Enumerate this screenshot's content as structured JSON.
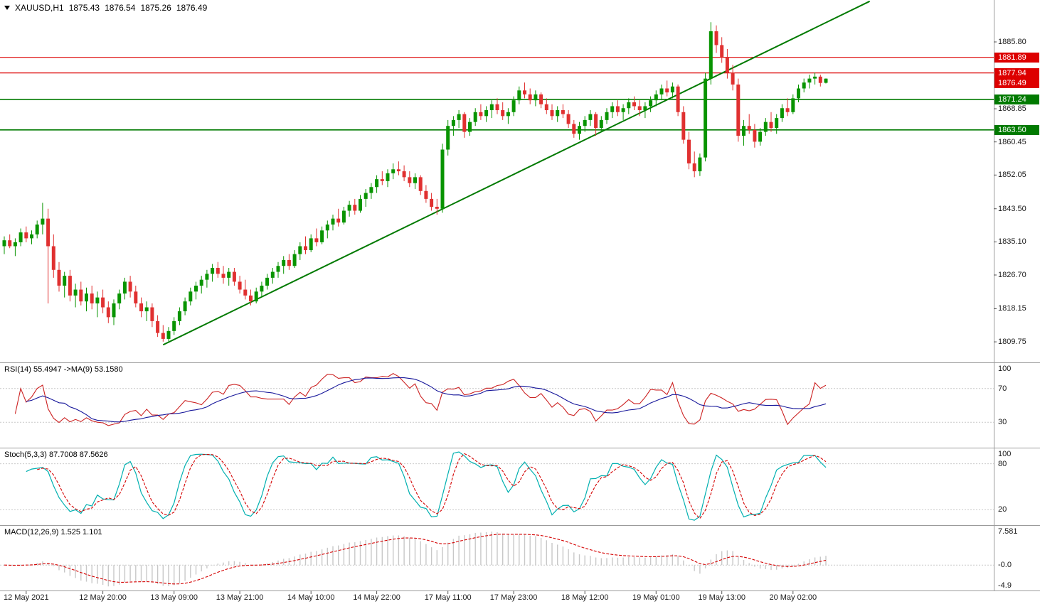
{
  "header": {
    "symbol": "XAUUSD,H1",
    "open": "1875.43",
    "high": "1876.54",
    "low": "1875.26",
    "close": "1876.49"
  },
  "panels": {
    "rsi_label": "RSI(14) 55.4947 ->MA(9) 53.1580",
    "stoch_label": "Stoch(5,3,3) 87.7008 87.5626",
    "macd_label": "MACD(12,26,9) 1.525 1.101"
  },
  "chart_data": {
    "type": "candlestick",
    "symbol": "XAUUSD",
    "timeframe": "H1",
    "last_ohlc": {
      "open": 1875.43,
      "high": 1876.54,
      "low": 1875.26,
      "close": 1876.49
    },
    "price_axis_ticks": [
      "1885.80",
      "1868.85",
      "1860.45",
      "1852.05",
      "1843.50",
      "1835.10",
      "1826.70",
      "1818.15",
      "1809.75"
    ],
    "price_levels": [
      {
        "label": "1881.89",
        "price": 1881.89,
        "color": "#dd0000",
        "role": "resistance"
      },
      {
        "label": "1877.94",
        "price": 1877.94,
        "color": "#dd0000",
        "role": "resistance"
      },
      {
        "label": "1871.24",
        "price": 1871.24,
        "color": "#007a00",
        "role": "support"
      },
      {
        "label": "1863.50",
        "price": 1863.5,
        "color": "#007a00",
        "role": "support"
      }
    ],
    "current_price": {
      "label": "1876.49",
      "price": 1876.49,
      "color": "#dd0000"
    },
    "trendline": {
      "from_index": 29,
      "from_price": 1809.0,
      "to_index": 158,
      "to_price": 1896.1,
      "color": "#007a00"
    },
    "candle_colors": {
      "up": "#089400",
      "down": "#e03030"
    },
    "time_labels": [
      {
        "text": "12 May 2021",
        "index": 4
      },
      {
        "text": "12 May 20:00",
        "index": 18
      },
      {
        "text": "13 May 09:00",
        "index": 31
      },
      {
        "text": "13 May 21:00",
        "index": 43
      },
      {
        "text": "14 May 10:00",
        "index": 56
      },
      {
        "text": "14 May 22:00",
        "index": 68
      },
      {
        "text": "17 May 11:00",
        "index": 81
      },
      {
        "text": "17 May 23:00",
        "index": 93
      },
      {
        "text": "18 May 12:00",
        "index": 106
      },
      {
        "text": "19 May 01:00",
        "index": 119
      },
      {
        "text": "19 May 13:00",
        "index": 131
      },
      {
        "text": "20 May 02:00",
        "index": 144
      }
    ],
    "indicators": {
      "rsi": {
        "name": "RSI",
        "period": 14,
        "ma_period": 9,
        "value": 55.4947,
        "ma_value": 53.158,
        "axis": [
          "100",
          "70",
          "30"
        ],
        "levels": [
          70,
          30
        ],
        "color": "#cc2222",
        "ma_color": "#16169a"
      },
      "stoch": {
        "name": "Stochastic",
        "params": [
          5,
          3,
          3
        ],
        "k_value": 87.7008,
        "d_value": 87.5626,
        "axis": [
          "100",
          "80",
          "20"
        ],
        "levels": [
          80,
          20
        ],
        "k_color": "#00b0b0",
        "d_color": "#d40000"
      },
      "macd": {
        "name": "MACD",
        "params": [
          12,
          26,
          9
        ],
        "value": 1.525,
        "signal_value": 1.101,
        "axis": [
          "7.581",
          "-0.0",
          "-4.9"
        ],
        "hist_color": "#c8c8c8",
        "signal_color": "#d40000"
      }
    },
    "candles": [
      [
        1834.0,
        1836.5,
        1832.0,
        1835.5
      ],
      [
        1835.5,
        1837.0,
        1833.5,
        1834.0
      ],
      [
        1834.0,
        1836.0,
        1831.5,
        1835.0
      ],
      [
        1835.0,
        1838.5,
        1834.0,
        1837.5
      ],
      [
        1837.5,
        1839.0,
        1835.0,
        1836.0
      ],
      [
        1836.0,
        1838.0,
        1834.5,
        1837.0
      ],
      [
        1837.0,
        1840.5,
        1836.0,
        1839.5
      ],
      [
        1839.5,
        1845.0,
        1837.0,
        1841.0
      ],
      [
        1841.0,
        1843.5,
        1819.5,
        1834.0
      ],
      [
        1834.0,
        1837.0,
        1826.0,
        1828.0
      ],
      [
        1828.0,
        1830.0,
        1822.5,
        1824.0
      ],
      [
        1824.0,
        1827.5,
        1821.0,
        1826.5
      ],
      [
        1826.5,
        1828.0,
        1820.0,
        1821.5
      ],
      [
        1821.5,
        1824.5,
        1818.5,
        1823.0
      ],
      [
        1823.0,
        1825.0,
        1819.0,
        1820.0
      ],
      [
        1820.0,
        1823.5,
        1817.5,
        1822.0
      ],
      [
        1822.0,
        1824.0,
        1818.0,
        1819.5
      ],
      [
        1819.5,
        1822.5,
        1816.0,
        1821.0
      ],
      [
        1821.0,
        1823.0,
        1817.0,
        1818.5
      ],
      [
        1818.5,
        1820.0,
        1814.5,
        1816.0
      ],
      [
        1816.0,
        1820.5,
        1814.0,
        1819.5
      ],
      [
        1819.5,
        1823.0,
        1818.0,
        1822.0
      ],
      [
        1822.0,
        1826.0,
        1820.5,
        1825.0
      ],
      [
        1825.0,
        1826.5,
        1821.0,
        1822.5
      ],
      [
        1822.5,
        1824.0,
        1818.5,
        1819.5
      ],
      [
        1819.5,
        1821.0,
        1816.0,
        1817.5
      ],
      [
        1817.5,
        1820.0,
        1815.0,
        1818.5
      ],
      [
        1818.5,
        1819.5,
        1813.5,
        1815.0
      ],
      [
        1815.0,
        1816.5,
        1811.0,
        1812.0
      ],
      [
        1812.0,
        1814.0,
        1809.8,
        1810.5
      ],
      [
        1810.5,
        1813.5,
        1809.9,
        1812.5
      ],
      [
        1812.5,
        1816.0,
        1811.5,
        1815.0
      ],
      [
        1815.0,
        1818.5,
        1814.0,
        1817.5
      ],
      [
        1817.5,
        1821.0,
        1816.5,
        1820.0
      ],
      [
        1820.0,
        1823.5,
        1819.0,
        1822.5
      ],
      [
        1822.5,
        1825.0,
        1820.5,
        1824.0
      ],
      [
        1824.0,
        1826.5,
        1822.0,
        1825.5
      ],
      [
        1825.5,
        1828.0,
        1823.5,
        1827.0
      ],
      [
        1827.0,
        1829.5,
        1825.0,
        1828.5
      ],
      [
        1828.5,
        1830.0,
        1826.0,
        1827.0
      ],
      [
        1827.0,
        1829.0,
        1824.5,
        1826.0
      ],
      [
        1826.0,
        1828.5,
        1824.0,
        1827.5
      ],
      [
        1827.5,
        1828.5,
        1824.0,
        1825.0
      ],
      [
        1825.0,
        1826.5,
        1822.0,
        1823.0
      ],
      [
        1823.0,
        1825.5,
        1820.5,
        1821.5
      ],
      [
        1821.5,
        1823.0,
        1819.0,
        1820.0
      ],
      [
        1820.0,
        1823.5,
        1819.5,
        1822.5
      ],
      [
        1822.5,
        1825.0,
        1821.0,
        1824.0
      ],
      [
        1824.0,
        1827.0,
        1823.0,
        1826.0
      ],
      [
        1826.0,
        1828.5,
        1824.5,
        1827.5
      ],
      [
        1827.5,
        1830.0,
        1826.0,
        1829.0
      ],
      [
        1829.0,
        1831.5,
        1827.0,
        1830.5
      ],
      [
        1830.5,
        1832.0,
        1828.0,
        1829.0
      ],
      [
        1829.0,
        1833.0,
        1828.5,
        1832.0
      ],
      [
        1832.0,
        1835.0,
        1830.5,
        1834.0
      ],
      [
        1834.0,
        1836.5,
        1832.0,
        1833.0
      ],
      [
        1833.0,
        1837.0,
        1832.5,
        1836.0
      ],
      [
        1836.0,
        1838.5,
        1834.0,
        1835.0
      ],
      [
        1835.0,
        1839.0,
        1834.5,
        1838.0
      ],
      [
        1838.0,
        1840.5,
        1836.0,
        1839.5
      ],
      [
        1839.5,
        1842.0,
        1838.0,
        1841.0
      ],
      [
        1841.0,
        1843.5,
        1839.0,
        1840.0
      ],
      [
        1840.0,
        1844.0,
        1839.5,
        1843.0
      ],
      [
        1843.0,
        1845.5,
        1841.5,
        1844.5
      ],
      [
        1844.5,
        1846.0,
        1842.0,
        1843.0
      ],
      [
        1843.0,
        1847.0,
        1842.5,
        1846.0
      ],
      [
        1846.0,
        1848.5,
        1844.0,
        1847.5
      ],
      [
        1847.5,
        1850.0,
        1846.0,
        1849.0
      ],
      [
        1849.0,
        1852.0,
        1847.5,
        1851.0
      ],
      [
        1851.0,
        1853.0,
        1849.5,
        1850.5
      ],
      [
        1850.5,
        1853.5,
        1849.0,
        1852.5
      ],
      [
        1852.5,
        1855.0,
        1851.0,
        1853.5
      ],
      [
        1853.5,
        1855.5,
        1852.0,
        1853.0
      ],
      [
        1853.0,
        1854.5,
        1850.5,
        1851.5
      ],
      [
        1851.5,
        1853.0,
        1849.0,
        1850.0
      ],
      [
        1850.0,
        1852.5,
        1848.5,
        1851.5
      ],
      [
        1851.5,
        1852.0,
        1847.0,
        1848.0
      ],
      [
        1848.0,
        1849.5,
        1845.0,
        1846.0
      ],
      [
        1846.0,
        1847.5,
        1843.0,
        1844.0
      ],
      [
        1844.0,
        1846.0,
        1842.0,
        1843.5
      ],
      [
        1843.5,
        1860.0,
        1842.5,
        1858.5
      ],
      [
        1858.5,
        1866.0,
        1857.0,
        1864.5
      ],
      [
        1864.5,
        1867.0,
        1862.0,
        1866.0
      ],
      [
        1866.0,
        1868.5,
        1864.0,
        1867.5
      ],
      [
        1867.5,
        1868.0,
        1861.5,
        1863.0
      ],
      [
        1863.0,
        1866.5,
        1862.0,
        1865.5
      ],
      [
        1865.5,
        1869.0,
        1864.5,
        1868.0
      ],
      [
        1868.0,
        1870.0,
        1866.0,
        1867.0
      ],
      [
        1867.0,
        1869.5,
        1865.5,
        1868.5
      ],
      [
        1868.5,
        1871.0,
        1866.5,
        1870.0
      ],
      [
        1870.0,
        1871.5,
        1867.5,
        1868.5
      ],
      [
        1868.5,
        1870.5,
        1866.0,
        1867.0
      ],
      [
        1867.0,
        1869.0,
        1865.0,
        1868.0
      ],
      [
        1868.0,
        1872.0,
        1867.0,
        1871.0
      ],
      [
        1871.0,
        1874.5,
        1870.0,
        1873.5
      ],
      [
        1873.5,
        1875.5,
        1871.5,
        1872.5
      ],
      [
        1872.5,
        1874.0,
        1870.0,
        1871.0
      ],
      [
        1871.0,
        1873.5,
        1869.5,
        1872.5
      ],
      [
        1872.5,
        1873.0,
        1869.0,
        1870.0
      ],
      [
        1870.0,
        1871.5,
        1867.5,
        1868.5
      ],
      [
        1868.5,
        1870.0,
        1866.0,
        1867.0
      ],
      [
        1867.0,
        1869.5,
        1865.5,
        1868.5
      ],
      [
        1868.5,
        1870.0,
        1866.5,
        1867.5
      ],
      [
        1867.5,
        1868.5,
        1864.0,
        1865.0
      ],
      [
        1865.0,
        1866.0,
        1861.5,
        1862.5
      ],
      [
        1862.5,
        1865.5,
        1861.0,
        1864.5
      ],
      [
        1864.5,
        1867.0,
        1863.0,
        1866.0
      ],
      [
        1866.0,
        1868.5,
        1864.5,
        1867.5
      ],
      [
        1867.5,
        1868.0,
        1862.0,
        1864.0
      ],
      [
        1864.0,
        1867.0,
        1863.0,
        1866.0
      ],
      [
        1866.0,
        1869.0,
        1865.0,
        1868.0
      ],
      [
        1868.0,
        1870.5,
        1866.5,
        1869.5
      ],
      [
        1869.5,
        1871.0,
        1867.0,
        1868.0
      ],
      [
        1868.0,
        1870.0,
        1866.0,
        1869.0
      ],
      [
        1869.0,
        1871.5,
        1867.5,
        1870.5
      ],
      [
        1870.5,
        1872.0,
        1868.5,
        1869.5
      ],
      [
        1869.5,
        1871.0,
        1867.0,
        1868.5
      ],
      [
        1868.5,
        1870.5,
        1866.5,
        1869.5
      ],
      [
        1869.5,
        1872.0,
        1868.0,
        1871.0
      ],
      [
        1871.0,
        1873.5,
        1869.5,
        1872.5
      ],
      [
        1872.5,
        1875.0,
        1871.0,
        1874.0
      ],
      [
        1874.0,
        1876.0,
        1872.0,
        1873.0
      ],
      [
        1873.0,
        1875.5,
        1871.5,
        1874.5
      ],
      [
        1874.5,
        1875.0,
        1867.0,
        1868.0
      ],
      [
        1868.0,
        1869.5,
        1860.0,
        1861.0
      ],
      [
        1861.0,
        1863.0,
        1853.5,
        1855.0
      ],
      [
        1855.0,
        1858.0,
        1851.5,
        1853.0
      ],
      [
        1853.0,
        1857.5,
        1851.8,
        1856.5
      ],
      [
        1856.5,
        1878.0,
        1855.5,
        1876.5
      ],
      [
        1876.5,
        1890.8,
        1875.0,
        1888.5
      ],
      [
        1888.5,
        1890.0,
        1883.0,
        1885.0
      ],
      [
        1885.0,
        1887.0,
        1880.5,
        1882.0
      ],
      [
        1882.0,
        1884.0,
        1876.5,
        1878.0
      ],
      [
        1878.0,
        1880.0,
        1873.5,
        1875.0
      ],
      [
        1875.0,
        1876.5,
        1860.5,
        1862.0
      ],
      [
        1862.0,
        1866.0,
        1859.5,
        1864.5
      ],
      [
        1864.5,
        1867.5,
        1862.5,
        1863.5
      ],
      [
        1863.5,
        1865.0,
        1859.0,
        1860.5
      ],
      [
        1860.5,
        1864.0,
        1859.5,
        1863.0
      ],
      [
        1863.0,
        1866.5,
        1862.0,
        1865.5
      ],
      [
        1865.5,
        1868.0,
        1863.0,
        1864.0
      ],
      [
        1864.0,
        1867.5,
        1862.5,
        1866.5
      ],
      [
        1866.5,
        1870.0,
        1865.5,
        1869.0
      ],
      [
        1869.0,
        1871.5,
        1867.0,
        1868.0
      ],
      [
        1868.0,
        1872.5,
        1867.5,
        1871.5
      ],
      [
        1871.5,
        1875.0,
        1870.5,
        1874.0
      ],
      [
        1874.0,
        1876.5,
        1873.0,
        1875.5
      ],
      [
        1875.5,
        1877.5,
        1874.0,
        1876.5
      ],
      [
        1876.5,
        1878.0,
        1875.0,
        1877.0
      ],
      [
        1877.0,
        1877.5,
        1874.5,
        1875.4
      ],
      [
        1875.43,
        1876.54,
        1875.26,
        1876.49
      ]
    ]
  }
}
